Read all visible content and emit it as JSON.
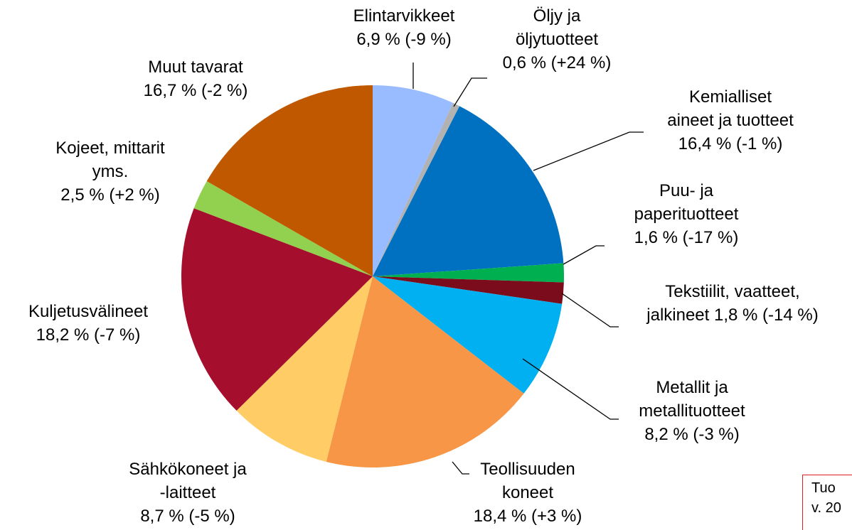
{
  "chart_data": {
    "type": "pie",
    "categories": [
      "Elintarvikkeet",
      "Öljy ja\nöljytuotteet",
      "Kemialliset\naineet ja tuotteet",
      "Puu- ja\npaperituotteet",
      "Tekstiilit, vaatteet,\njalkineet",
      "Metallit ja\nmetallituotteet",
      "Teollisuuden\nkoneet",
      "Sähkökoneet ja\n-laitteet",
      "Kuljetusvälineet",
      "Kojeet, mittarit\nyms.",
      "Muut tavarat"
    ],
    "values": [
      6.9,
      0.6,
      16.4,
      1.6,
      1.8,
      8.2,
      18.4,
      8.7,
      18.2,
      2.5,
      16.7
    ],
    "value_labels": [
      "6,9 % (-9 %)",
      "0,6 % (+24 %)",
      "16,4 % (-1 %)",
      "1,6 % (-17 %)",
      "1,8 % (-14 %)",
      "8,2 % (-3 %)",
      "18,4 % (+3 %)",
      "8,7 % (-5 %)",
      "18,2 % (-7 %)",
      "2,5 % (+2 %)",
      "16,7 % (-2 %)"
    ],
    "colors": [
      "#99bbff",
      "#b2b2b2",
      "#0070c0",
      "#00b050",
      "#7b0c1c",
      "#00b0f0",
      "#f79646",
      "#ffcc66",
      "#a50f2d",
      "#92d050",
      "#c05800"
    ],
    "annotation": "Tuo\nv. 20"
  }
}
